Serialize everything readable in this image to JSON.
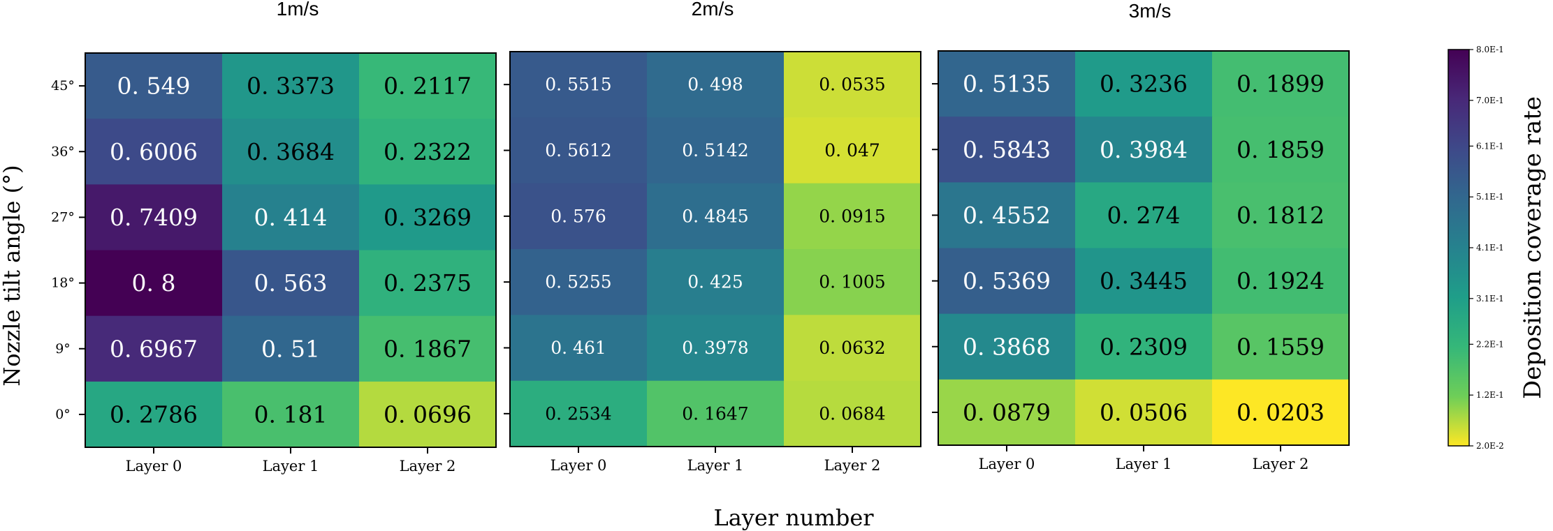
{
  "chart_data": {
    "type": "heatmap",
    "ylabel": "Nozzle tilt angle (°)",
    "xlabel": "Layer number",
    "rows": [
      "45°",
      "36°",
      "27°",
      "18°",
      "9°",
      "0°"
    ],
    "columns": [
      "Layer 0",
      "Layer 1",
      "Layer 2"
    ],
    "panels": [
      {
        "title": "1m/s",
        "values": [
          [
            0.549,
            0.3373,
            0.2117
          ],
          [
            0.6006,
            0.3684,
            0.2322
          ],
          [
            0.7409,
            0.414,
            0.3269
          ],
          [
            0.8,
            0.563,
            0.2375
          ],
          [
            0.6967,
            0.51,
            0.1867
          ],
          [
            0.2786,
            0.181,
            0.0696
          ]
        ]
      },
      {
        "title": "2m/s",
        "values": [
          [
            0.5515,
            0.498,
            0.0535
          ],
          [
            0.5612,
            0.5142,
            0.047
          ],
          [
            0.576,
            0.4845,
            0.0915
          ],
          [
            0.5255,
            0.425,
            0.1005
          ],
          [
            0.461,
            0.3978,
            0.0632
          ],
          [
            0.2534,
            0.1647,
            0.0684
          ]
        ]
      },
      {
        "title": "3m/s",
        "values": [
          [
            0.5135,
            0.3236,
            0.1899
          ],
          [
            0.5843,
            0.3984,
            0.1859
          ],
          [
            0.4552,
            0.274,
            0.1812
          ],
          [
            0.5369,
            0.3445,
            0.1924
          ],
          [
            0.3868,
            0.2309,
            0.1559
          ],
          [
            0.0879,
            0.0506,
            0.0203
          ]
        ]
      }
    ],
    "colorbar": {
      "label": "Deposition coverage rate",
      "min": 0.02,
      "max": 0.8,
      "colormap": "viridis (reversed: high=dark purple, low=yellow)",
      "ticks": [
        "8.0E-1",
        "7.0E-1",
        "6.1E-1",
        "5.1E-1",
        "4.1E-1",
        "3.1E-1",
        "2.2E-1",
        "1.2E-1",
        "2.0E-2"
      ],
      "tick_values": [
        0.8,
        0.7,
        0.61,
        0.51,
        0.41,
        0.31,
        0.22,
        0.12,
        0.02
      ]
    }
  }
}
